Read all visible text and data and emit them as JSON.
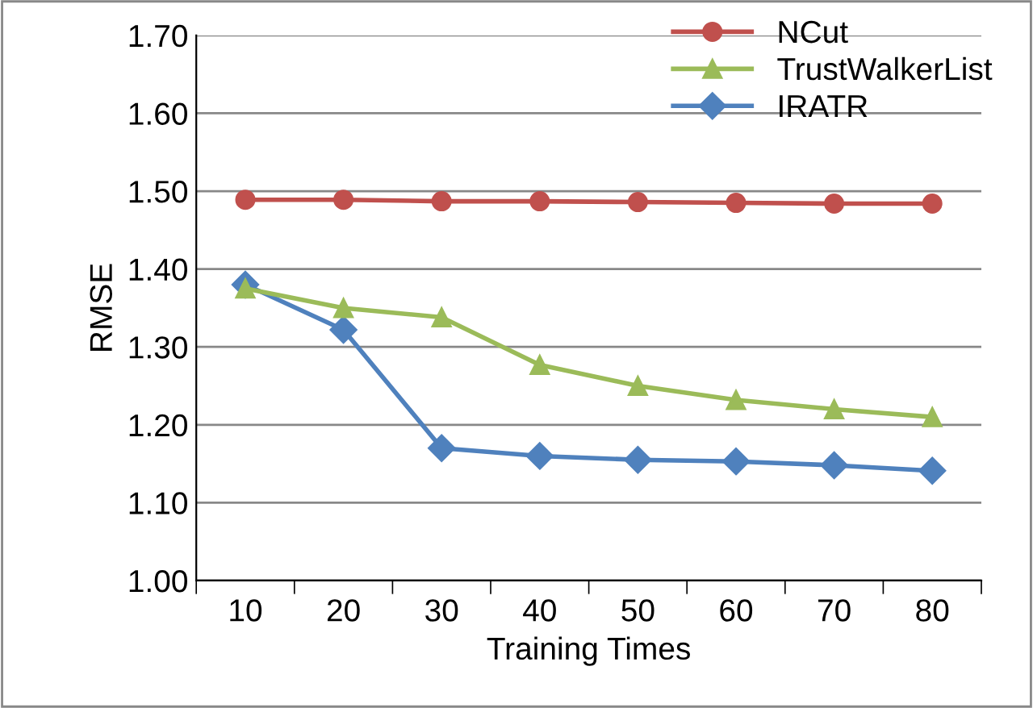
{
  "chart_data": {
    "type": "line",
    "xlabel": "Training Times",
    "ylabel": "RMSE",
    "categories": [
      "10",
      "20",
      "30",
      "40",
      "50",
      "60",
      "70",
      "80"
    ],
    "series": [
      {
        "name": "NCut",
        "color": "#c0504d",
        "marker": "circle",
        "values": [
          1.489,
          1.489,
          1.487,
          1.487,
          1.486,
          1.485,
          1.484,
          1.484
        ]
      },
      {
        "name": "TrustWalkerList",
        "color": "#9bbb59",
        "marker": "triangle",
        "values": [
          1.375,
          1.35,
          1.338,
          1.277,
          1.25,
          1.232,
          1.22,
          1.21
        ]
      },
      {
        "name": "IRATR",
        "color": "#4f81bd",
        "marker": "diamond",
        "values": [
          1.38,
          1.322,
          1.17,
          1.16,
          1.155,
          1.153,
          1.148,
          1.141
        ]
      }
    ],
    "ylim": [
      1.0,
      1.7
    ],
    "yticks": [
      {
        "value": 1.0,
        "label": "1.00"
      },
      {
        "value": 1.1,
        "label": "1.10"
      },
      {
        "value": 1.2,
        "label": "1.20"
      },
      {
        "value": 1.3,
        "label": "1.30"
      },
      {
        "value": 1.4,
        "label": "1.40"
      },
      {
        "value": 1.5,
        "label": "1.50"
      },
      {
        "value": 1.6,
        "label": "1.60"
      },
      {
        "value": 1.7,
        "label": "1.70"
      }
    ],
    "grid": "y",
    "legend": "top right"
  }
}
